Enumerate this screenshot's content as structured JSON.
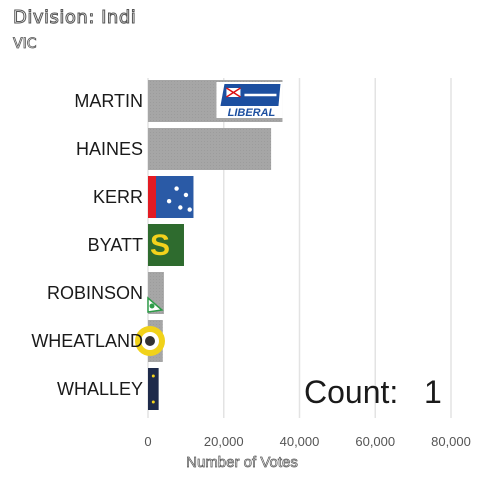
{
  "header": {
    "title": "Division: Indi",
    "subtitle": "VIC"
  },
  "annotation": {
    "count_label": "Count:",
    "count_value": "1"
  },
  "chart_data": {
    "type": "bar",
    "orientation": "horizontal",
    "categories": [
      "MARTIN",
      "HAINES",
      "KERR",
      "BYATT",
      "ROBINSON",
      "WHEATLAND",
      "WHALLEY"
    ],
    "values": [
      35500,
      32500,
      12000,
      9500,
      4200,
      3900,
      2800
    ],
    "xlabel": "Number of Votes",
    "ylabel": "",
    "xlim": [
      0,
      80000
    ],
    "xticks": [
      0,
      20000,
      40000,
      60000,
      80000
    ],
    "xtick_labels": [
      "0",
      "20,000",
      "40,000",
      "60,000",
      "80,000"
    ],
    "grid": "vertical",
    "bar_color": "#a6a6a6",
    "party_logos": [
      {
        "logo": "liberal-logo",
        "text": "LIBERAL"
      },
      {
        "logo": "none"
      },
      {
        "logo": "labor-logo"
      },
      {
        "logo": "nationals-logo",
        "text": "S"
      },
      {
        "logo": "greens-logo"
      },
      {
        "logo": "yellow-party-logo"
      },
      {
        "logo": "navy-party-logo"
      }
    ]
  }
}
